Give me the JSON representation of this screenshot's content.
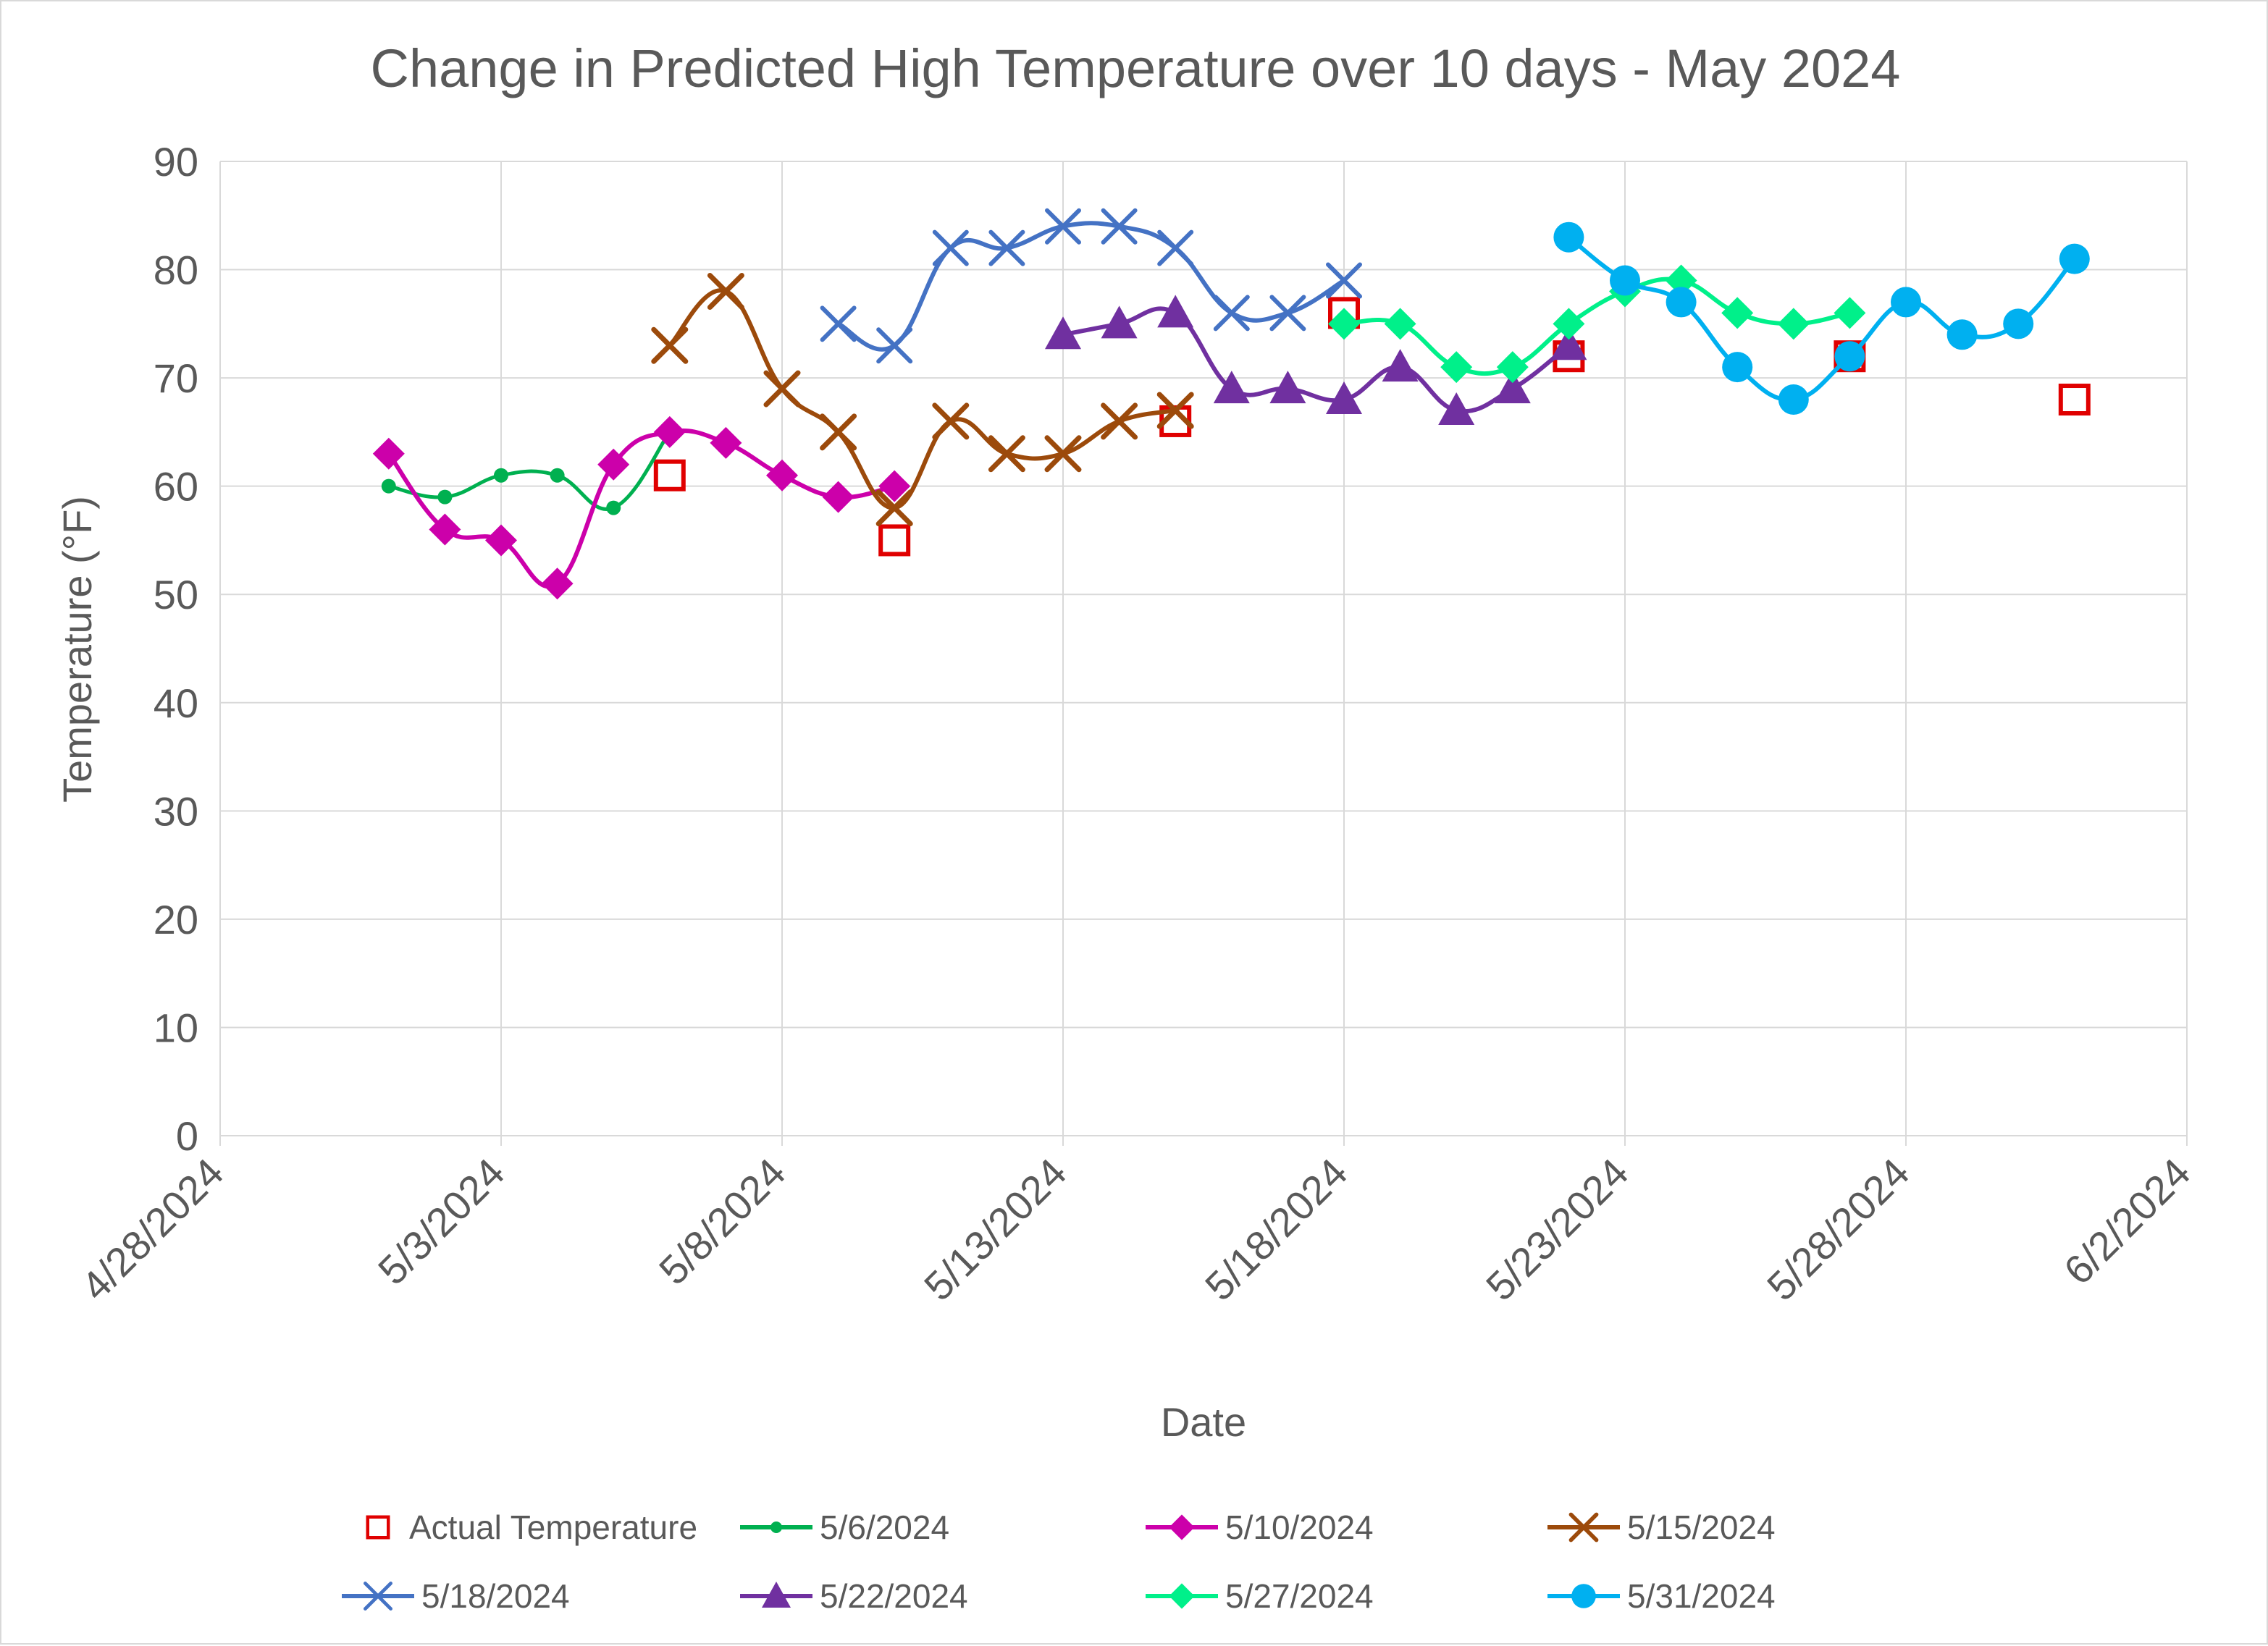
{
  "chart_data": {
    "type": "line",
    "title": "Change in Predicted High Temperature over 10 days - May 2024",
    "xlabel": "Date",
    "ylabel": "Temperature (°F)",
    "xlim": [
      "2024-04-28",
      "2024-06-02"
    ],
    "ylim": [
      0,
      90
    ],
    "y_ticks": [
      0,
      10,
      20,
      30,
      40,
      50,
      60,
      70,
      80,
      90
    ],
    "x_ticks": [
      "4/28/2024",
      "5/3/2024",
      "5/8/2024",
      "5/13/2024",
      "5/18/2024",
      "5/23/2024",
      "5/28/2024",
      "6/2/2024"
    ],
    "grid": true,
    "legend_position": "bottom",
    "series": [
      {
        "name": "Actual Temperature",
        "color": "#e00000",
        "marker": "hollow-square",
        "line": false,
        "points": [
          [
            "2024-05-06",
            61
          ],
          [
            "2024-05-10",
            55
          ],
          [
            "2024-05-15",
            66
          ],
          [
            "2024-05-18",
            76
          ],
          [
            "2024-05-22",
            72
          ],
          [
            "2024-05-27",
            72
          ],
          [
            "2024-05-31",
            68
          ]
        ]
      },
      {
        "name": "5/6/2024",
        "color": "#00b050",
        "marker": "small-circle",
        "line": true,
        "points": [
          [
            "2024-05-01",
            60
          ],
          [
            "2024-05-02",
            59
          ],
          [
            "2024-05-03",
            61
          ],
          [
            "2024-05-04",
            61
          ],
          [
            "2024-05-05",
            58
          ],
          [
            "2024-05-06",
            65
          ]
        ]
      },
      {
        "name": "5/10/2024",
        "color": "#cc00aa",
        "marker": "diamond",
        "line": true,
        "points": [
          [
            "2024-05-01",
            63
          ],
          [
            "2024-05-02",
            56
          ],
          [
            "2024-05-03",
            55
          ],
          [
            "2024-05-04",
            51
          ],
          [
            "2024-05-05",
            62
          ],
          [
            "2024-05-06",
            65
          ],
          [
            "2024-05-07",
            64
          ],
          [
            "2024-05-08",
            61
          ],
          [
            "2024-05-09",
            59
          ],
          [
            "2024-05-10",
            60
          ]
        ]
      },
      {
        "name": "5/15/2024",
        "color": "#9c4a0b",
        "marker": "x-thick",
        "line": true,
        "points": [
          [
            "2024-05-06",
            73
          ],
          [
            "2024-05-07",
            78
          ],
          [
            "2024-05-08",
            69
          ],
          [
            "2024-05-09",
            65
          ],
          [
            "2024-05-10",
            58
          ],
          [
            "2024-05-11",
            66
          ],
          [
            "2024-05-12",
            63
          ],
          [
            "2024-05-13",
            63
          ],
          [
            "2024-05-14",
            66
          ],
          [
            "2024-05-15",
            67
          ]
        ]
      },
      {
        "name": "5/18/2024",
        "color": "#4472c4",
        "marker": "x",
        "line": true,
        "points": [
          [
            "2024-05-09",
            75
          ],
          [
            "2024-05-10",
            73
          ],
          [
            "2024-05-11",
            82
          ],
          [
            "2024-05-12",
            82
          ],
          [
            "2024-05-13",
            84
          ],
          [
            "2024-05-14",
            84
          ],
          [
            "2024-05-15",
            82
          ],
          [
            "2024-05-16",
            76
          ],
          [
            "2024-05-17",
            76
          ],
          [
            "2024-05-18",
            79
          ]
        ]
      },
      {
        "name": "5/22/2024",
        "color": "#7030a0",
        "marker": "triangle",
        "line": true,
        "points": [
          [
            "2024-05-13",
            74
          ],
          [
            "2024-05-14",
            75
          ],
          [
            "2024-05-15",
            76
          ],
          [
            "2024-05-16",
            69
          ],
          [
            "2024-05-17",
            69
          ],
          [
            "2024-05-18",
            68
          ],
          [
            "2024-05-19",
            71
          ],
          [
            "2024-05-20",
            67
          ],
          [
            "2024-05-21",
            69
          ],
          [
            "2024-05-22",
            73
          ]
        ]
      },
      {
        "name": "5/27/2024",
        "color": "#00f08a",
        "marker": "diamond",
        "line": true,
        "points": [
          [
            "2024-05-18",
            75
          ],
          [
            "2024-05-19",
            75
          ],
          [
            "2024-05-20",
            71
          ],
          [
            "2024-05-21",
            71
          ],
          [
            "2024-05-22",
            75
          ],
          [
            "2024-05-23",
            78
          ],
          [
            "2024-05-24",
            79
          ],
          [
            "2024-05-25",
            76
          ],
          [
            "2024-05-26",
            75
          ],
          [
            "2024-05-27",
            76
          ]
        ]
      },
      {
        "name": "5/31/2024",
        "color": "#00b0f0",
        "marker": "circle",
        "line": true,
        "points": [
          [
            "2024-05-22",
            83
          ],
          [
            "2024-05-23",
            79
          ],
          [
            "2024-05-24",
            77
          ],
          [
            "2024-05-25",
            71
          ],
          [
            "2024-05-26",
            68
          ],
          [
            "2024-05-27",
            72
          ],
          [
            "2024-05-28",
            77
          ],
          [
            "2024-05-29",
            74
          ],
          [
            "2024-05-30",
            75
          ],
          [
            "2024-05-31",
            81
          ]
        ]
      }
    ]
  }
}
